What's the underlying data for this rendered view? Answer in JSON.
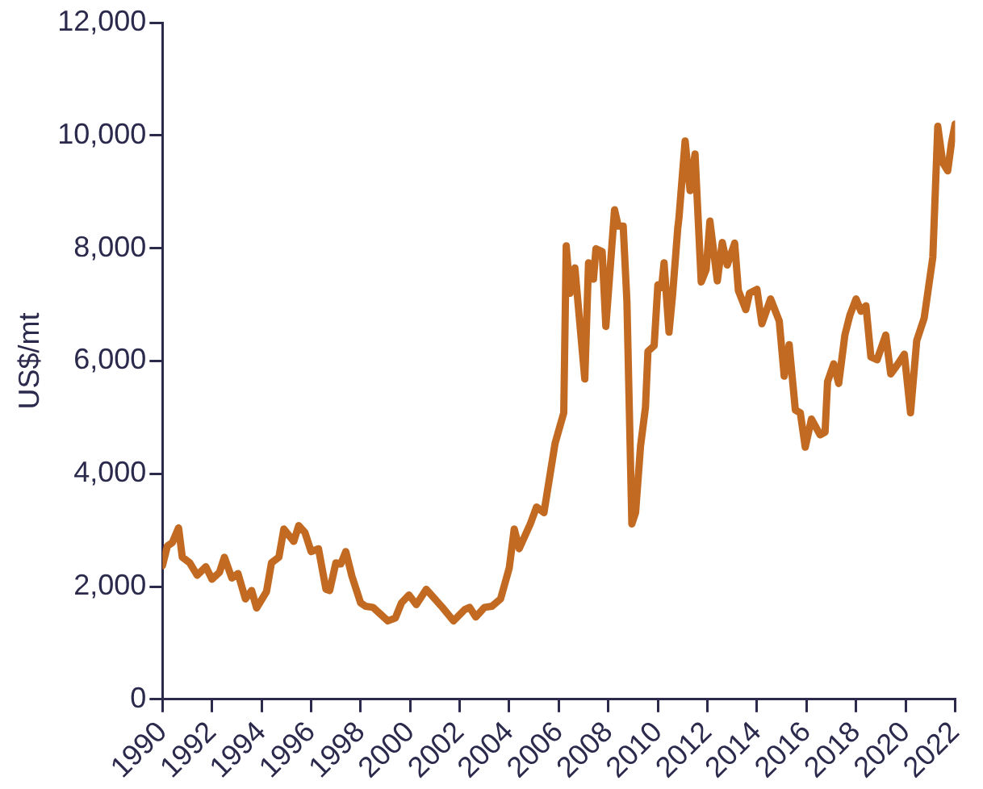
{
  "chart_data": {
    "type": "line",
    "ylabel": "US$/mt",
    "x": [
      1990.0,
      1990.2,
      1990.4,
      1990.65,
      1990.8,
      1991.1,
      1991.4,
      1991.75,
      1992.0,
      1992.3,
      1992.5,
      1992.8,
      1993.05,
      1993.35,
      1993.6,
      1993.8,
      1994.2,
      1994.4,
      1994.7,
      1994.9,
      1995.3,
      1995.5,
      1995.75,
      1996.0,
      1996.3,
      1996.6,
      1996.75,
      1997.0,
      1997.2,
      1997.4,
      1997.65,
      1998.0,
      1998.2,
      1998.5,
      1998.85,
      1999.1,
      1999.4,
      1999.65,
      1999.95,
      2000.25,
      2000.65,
      2001.0,
      2001.3,
      2001.75,
      2002.2,
      2002.4,
      2002.65,
      2003.0,
      2003.3,
      2003.65,
      2004.0,
      2004.2,
      2004.4,
      2004.85,
      2005.1,
      2005.4,
      2005.85,
      2006.2,
      2006.3,
      2006.45,
      2006.65,
      2007.05,
      2007.2,
      2007.4,
      2007.5,
      2007.75,
      2007.9,
      2008.25,
      2008.4,
      2008.6,
      2008.75,
      2008.95,
      2009.1,
      2009.3,
      2009.5,
      2009.6,
      2009.85,
      2010.0,
      2010.15,
      2010.25,
      2010.45,
      2010.6,
      2010.8,
      2010.85,
      2011.1,
      2011.3,
      2011.5,
      2011.75,
      2011.95,
      2012.1,
      2012.4,
      2012.6,
      2012.8,
      2013.1,
      2013.25,
      2013.55,
      2013.7,
      2014.0,
      2014.2,
      2014.55,
      2014.9,
      2015.1,
      2015.3,
      2015.55,
      2015.75,
      2015.95,
      2016.2,
      2016.55,
      2016.75,
      2016.85,
      2017.1,
      2017.3,
      2017.55,
      2017.75,
      2018.0,
      2018.2,
      2018.4,
      2018.6,
      2018.85,
      2019.2,
      2019.4,
      2019.65,
      2019.95,
      2020.2,
      2020.45,
      2020.75,
      2021.1,
      2021.3,
      2021.5,
      2021.7,
      2021.85,
      2022.0
    ],
    "series": [
      {
        "color": "#c26a22",
        "values": [
          2370,
          2720,
          2780,
          3040,
          2520,
          2420,
          2200,
          2350,
          2130,
          2250,
          2520,
          2150,
          2230,
          1780,
          1930,
          1620,
          1910,
          2420,
          2520,
          3020,
          2800,
          3080,
          2960,
          2620,
          2670,
          1950,
          1930,
          2420,
          2400,
          2620,
          2180,
          1710,
          1650,
          1630,
          1490,
          1390,
          1440,
          1710,
          1850,
          1680,
          1950,
          1780,
          1630,
          1390,
          1590,
          1630,
          1460,
          1630,
          1650,
          1780,
          2330,
          3020,
          2670,
          3110,
          3410,
          3310,
          4540,
          5080,
          8040,
          7200,
          7650,
          5680,
          7740,
          7450,
          7990,
          7940,
          6610,
          8680,
          8390,
          8390,
          7060,
          3110,
          3310,
          4490,
          5180,
          6170,
          6270,
          7350,
          7300,
          7740,
          6510,
          7200,
          8340,
          8530,
          9900,
          9020,
          9670,
          7400,
          7620,
          8480,
          7420,
          8100,
          7700,
          8090,
          7250,
          6910,
          7200,
          7270,
          6660,
          7100,
          6710,
          5730,
          6290,
          5130,
          5080,
          4470,
          4970,
          4690,
          4740,
          5630,
          5950,
          5600,
          6460,
          6810,
          7100,
          6880,
          6980,
          6070,
          6020,
          6460,
          5770,
          5920,
          6120,
          5080,
          6360,
          6760,
          7840,
          10160,
          9520,
          9370,
          9860,
          10200
        ]
      }
    ],
    "xlim": [
      1990,
      2022
    ],
    "xticks": [
      1990,
      1992,
      1994,
      1996,
      1998,
      2000,
      2002,
      2004,
      2006,
      2008,
      2010,
      2012,
      2014,
      2016,
      2018,
      2020,
      2022
    ],
    "ylim": [
      0,
      12000
    ],
    "yticks": [
      0,
      {
        "value": 2000,
        "label": "2,000"
      },
      {
        "value": 4000,
        "label": "4,000"
      },
      {
        "value": 6000,
        "label": "6,000"
      },
      {
        "value": 8000,
        "label": "8,000"
      },
      {
        "value": 10000,
        "label": "10,000"
      },
      {
        "value": 12000,
        "label": "12,000"
      }
    ]
  }
}
